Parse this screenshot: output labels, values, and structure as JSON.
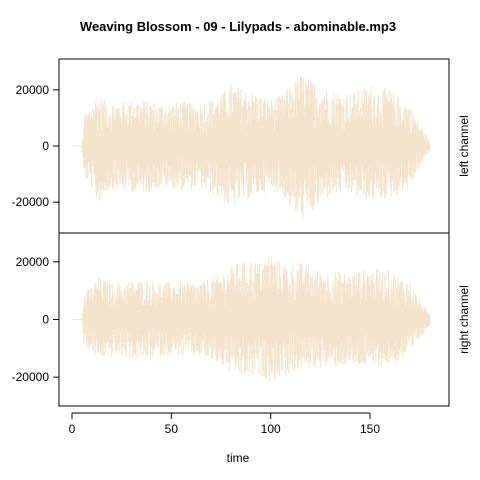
{
  "chart_data": {
    "type": "area",
    "title": "Weaving Blossom - 09 - Lilypads - abominable.mp3",
    "xlabel": "time",
    "xlim": [
      0,
      180
    ],
    "x_ticks": [
      0,
      50,
      100,
      150
    ],
    "x_tick_labels": [
      "0",
      "50",
      "100",
      "150"
    ],
    "color": "#f5e4cc",
    "series": [
      {
        "name": "left channel",
        "ylim": [
          -31000,
          31000
        ],
        "y_ticks": [
          -20000,
          0,
          20000
        ],
        "y_tick_labels": [
          "-20000",
          "0",
          "20000"
        ],
        "envelope": {
          "time": [
            0,
            5,
            6,
            10,
            13,
            18,
            25,
            35,
            45,
            55,
            65,
            75,
            80,
            85,
            90,
            95,
            100,
            105,
            110,
            115,
            120,
            125,
            130,
            140,
            150,
            160,
            170,
            175,
            180
          ],
          "max": [
            0,
            0,
            11000,
            15000,
            18000,
            16000,
            16000,
            17000,
            15000,
            16000,
            15000,
            19000,
            22000,
            21000,
            20000,
            18000,
            17000,
            18000,
            22000,
            26000,
            24000,
            22000,
            20000,
            19000,
            22000,
            20000,
            15000,
            8000,
            2000
          ],
          "min": [
            0,
            0,
            -11000,
            -15000,
            -21000,
            -16000,
            -16000,
            -17000,
            -15000,
            -16000,
            -15000,
            -19000,
            -23000,
            -20000,
            -19000,
            -17000,
            -16000,
            -17000,
            -22000,
            -27000,
            -25000,
            -21000,
            -18000,
            -17000,
            -20000,
            -19000,
            -15000,
            -8000,
            -2000
          ]
        }
      },
      {
        "name": "right channel",
        "ylim": [
          -30000,
          30000
        ],
        "y_ticks": [
          -20000,
          0,
          20000
        ],
        "y_tick_labels": [
          "-20000",
          "0",
          "20000"
        ],
        "envelope": {
          "time": [
            0,
            5,
            6,
            10,
            13,
            18,
            25,
            35,
            45,
            55,
            65,
            75,
            80,
            85,
            90,
            95,
            100,
            105,
            110,
            115,
            120,
            125,
            130,
            140,
            150,
            160,
            170,
            175,
            180
          ],
          "max": [
            0,
            0,
            9000,
            12000,
            15000,
            13000,
            13000,
            14000,
            13000,
            13000,
            13000,
            16000,
            19000,
            20000,
            21000,
            20000,
            23000,
            20000,
            19000,
            20000,
            18000,
            17000,
            17000,
            16000,
            18000,
            17000,
            13000,
            7000,
            2000
          ],
          "min": [
            0,
            0,
            -9000,
            -12000,
            -14000,
            -13000,
            -13000,
            -14000,
            -13000,
            -13000,
            -13000,
            -16000,
            -19000,
            -20000,
            -20000,
            -20000,
            -22000,
            -20000,
            -19000,
            -18000,
            -17000,
            -17000,
            -17000,
            -16000,
            -17000,
            -16000,
            -13000,
            -7000,
            -2000
          ]
        }
      }
    ]
  }
}
